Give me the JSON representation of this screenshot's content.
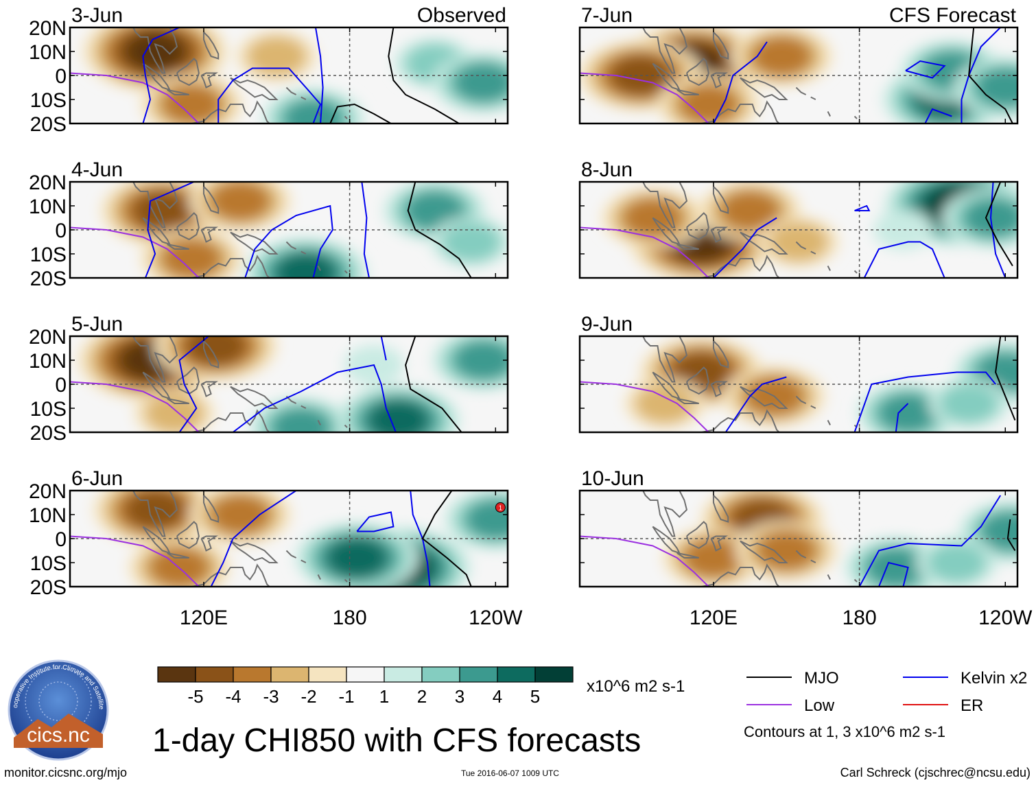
{
  "chart_data": {
    "type": "heatmap",
    "title": "1-day CHI850 with CFS forecasts",
    "units": "x10^6 m2 s-1",
    "y_axis": {
      "ticks": [
        "20N",
        "10N",
        "0",
        "10S",
        "20S"
      ],
      "range": [
        -20,
        20
      ]
    },
    "x_axis": {
      "ticks": [
        "120E",
        "180",
        "120W"
      ],
      "range": [
        65,
        245
      ]
    },
    "panels": [
      {
        "date": "3-Jun",
        "tag": "Observed",
        "kind": "obs",
        "centers": [
          {
            "lon": 100,
            "lat": 10,
            "v": -5
          },
          {
            "lon": 115,
            "lat": -12,
            "v": -3
          },
          {
            "lon": 150,
            "lat": 8,
            "v": -2
          },
          {
            "lon": 165,
            "lat": -18,
            "v": 3
          },
          {
            "lon": 215,
            "lat": 5,
            "v": 2
          },
          {
            "lon": 235,
            "lat": -3,
            "v": 3
          }
        ],
        "mjo": [
          [
            [
              198,
              20
            ],
            [
              196,
              8
            ],
            [
              198,
              -2
            ],
            [
              203,
              -8
            ],
            [
              215,
              -14
            ],
            [
              225,
              -20
            ]
          ],
          [
            [
              172,
              -20
            ],
            [
              175,
              -13
            ],
            [
              182,
              -12
            ],
            [
              190,
              -16
            ],
            [
              197,
              -20
            ]
          ]
        ],
        "kelvin": [
          [
            [
              95,
              -20
            ],
            [
              98,
              -10
            ],
            [
              96,
              0
            ],
            [
              95,
              8
            ],
            [
              99,
              15
            ],
            [
              110,
              20
            ]
          ],
          [
            [
              126,
              -20
            ],
            [
              126,
              -10
            ],
            [
              132,
              -2
            ],
            [
              140,
              3
            ],
            [
              155,
              3
            ],
            [
              162,
              -5
            ],
            [
              168,
              -12
            ],
            [
              165,
              -20
            ]
          ],
          [
            [
              166,
              20
            ],
            [
              168,
              8
            ],
            [
              169,
              -5
            ],
            [
              168,
              -20
            ]
          ]
        ]
      },
      {
        "date": "4-Jun",
        "kind": "obs",
        "centers": [
          {
            "lon": 103,
            "lat": 8,
            "v": -4
          },
          {
            "lon": 115,
            "lat": -12,
            "v": -3
          },
          {
            "lon": 135,
            "lat": 12,
            "v": -3
          },
          {
            "lon": 162,
            "lat": -18,
            "v": 4
          },
          {
            "lon": 215,
            "lat": 8,
            "v": 3
          },
          {
            "lon": 230,
            "lat": -5,
            "v": 2
          }
        ],
        "mjo": [
          [
            [
              207,
              20
            ],
            [
              204,
              8
            ],
            [
              207,
              0
            ],
            [
              217,
              -6
            ],
            [
              225,
              -12
            ],
            [
              230,
              -20
            ]
          ]
        ],
        "kelvin": [
          [
            [
              96,
              -20
            ],
            [
              100,
              -10
            ],
            [
              97,
              0
            ],
            [
              98,
              12
            ],
            [
              116,
              20
            ]
          ],
          [
            [
              137,
              -20
            ],
            [
              141,
              -8
            ],
            [
              148,
              0
            ],
            [
              158,
              6
            ],
            [
              172,
              10
            ],
            [
              173,
              0
            ],
            [
              168,
              -8
            ],
            [
              165,
              -20
            ]
          ],
          [
            [
              185,
              20
            ],
            [
              187,
              5
            ],
            [
              186,
              -10
            ],
            [
              188,
              -20
            ]
          ]
        ]
      },
      {
        "date": "5-Jun",
        "kind": "obs",
        "centers": [
          {
            "lon": 98,
            "lat": 10,
            "v": -5
          },
          {
            "lon": 125,
            "lat": 16,
            "v": -4
          },
          {
            "lon": 108,
            "lat": -12,
            "v": -2
          },
          {
            "lon": 160,
            "lat": -18,
            "v": 3
          },
          {
            "lon": 200,
            "lat": -15,
            "v": 4
          },
          {
            "lon": 235,
            "lat": 10,
            "v": 3
          },
          {
            "lon": 190,
            "lat": 8,
            "v": 1
          }
        ],
        "mjo": [
          [
            [
              207,
              20
            ],
            [
              203,
              8
            ],
            [
              205,
              -2
            ],
            [
              218,
              -10
            ],
            [
              226,
              -20
            ]
          ]
        ],
        "kelvin": [
          [
            [
              110,
              -20
            ],
            [
              117,
              -10
            ],
            [
              112,
              0
            ],
            [
              110,
              10
            ],
            [
              122,
              20
            ]
          ],
          [
            [
              132,
              -20
            ],
            [
              145,
              -10
            ],
            [
              160,
              -3
            ],
            [
              175,
              5
            ],
            [
              190,
              8
            ],
            [
              193,
              0
            ],
            [
              195,
              -10
            ],
            [
              199,
              -20
            ]
          ],
          [
            [
              193,
              20
            ],
            [
              195,
              10
            ]
          ]
        ]
      },
      {
        "date": "6-Jun",
        "kind": "obs",
        "centers": [
          {
            "lon": 100,
            "lat": 12,
            "v": -4
          },
          {
            "lon": 110,
            "lat": -12,
            "v": -3
          },
          {
            "lon": 135,
            "lat": 10,
            "v": -3
          },
          {
            "lon": 200,
            "lat": -12,
            "v": 5
          },
          {
            "lon": 183,
            "lat": -8,
            "v": 4
          },
          {
            "lon": 240,
            "lat": 8,
            "v": 3
          }
        ],
        "mjo": [
          [
            [
              222,
              20
            ],
            [
              215,
              10
            ],
            [
              210,
              0
            ],
            [
              220,
              -8
            ],
            [
              228,
              -15
            ],
            [
              230,
              -20
            ]
          ]
        ],
        "kelvin": [
          [
            [
              123,
              -20
            ],
            [
              128,
              -10
            ],
            [
              132,
              0
            ],
            [
              143,
              10
            ],
            [
              158,
              20
            ]
          ],
          [
            [
              183,
              3
            ],
            [
              188,
              9
            ],
            [
              197,
              11
            ],
            [
              198,
              5
            ],
            [
              190,
              3
            ],
            [
              183,
              3
            ]
          ],
          [
            [
              205,
              20
            ],
            [
              206,
              10
            ],
            [
              210,
              0
            ],
            [
              212,
              -10
            ],
            [
              213,
              -20
            ]
          ]
        ],
        "storm": {
          "lon": 242,
          "lat": 13,
          "label": "1"
        }
      },
      {
        "date": "7-Jun",
        "tag": "CFS Forecast",
        "kind": "fcst",
        "centers": [
          {
            "lon": 112,
            "lat": 5,
            "v": -5
          },
          {
            "lon": 90,
            "lat": 0,
            "v": -4
          },
          {
            "lon": 148,
            "lat": 8,
            "v": -3
          },
          {
            "lon": 118,
            "lat": -12,
            "v": -3
          },
          {
            "lon": 215,
            "lat": -10,
            "v": 4
          },
          {
            "lon": 218,
            "lat": 2,
            "v": 3
          },
          {
            "lon": 240,
            "lat": -5,
            "v": 3
          }
        ],
        "mjo": [
          [
            [
              227,
              20
            ],
            [
              225,
              0
            ],
            [
              232,
              -8
            ],
            [
              240,
              -14
            ],
            [
              243,
              -20
            ]
          ]
        ],
        "kelvin": [
          [
            [
              120,
              -20
            ],
            [
              125,
              -10
            ],
            [
              128,
              0
            ],
            [
              138,
              8
            ],
            [
              142,
              14
            ]
          ],
          [
            [
              199,
              2
            ],
            [
              205,
              6
            ],
            [
              215,
              4
            ],
            [
              210,
              -1
            ],
            [
              199,
              2
            ]
          ],
          [
            [
              222,
              -20
            ],
            [
              222,
              -10
            ],
            [
              225,
              0
            ],
            [
              230,
              12
            ],
            [
              238,
              20
            ]
          ],
          [
            [
              207,
              -20
            ],
            [
              210,
              -14
            ],
            [
              218,
              -17
            ]
          ]
        ]
      },
      {
        "date": "8-Jun",
        "kind": "fcst",
        "centers": [
          {
            "lon": 115,
            "lat": -5,
            "v": -5
          },
          {
            "lon": 95,
            "lat": 5,
            "v": -3
          },
          {
            "lon": 135,
            "lat": 8,
            "v": -3
          },
          {
            "lon": 155,
            "lat": -5,
            "v": -2
          },
          {
            "lon": 220,
            "lat": 10,
            "v": 5
          },
          {
            "lon": 235,
            "lat": 5,
            "v": 3
          },
          {
            "lon": 198,
            "lat": 0,
            "v": 1
          }
        ],
        "mjo": [
          [
            [
              238,
              20
            ],
            [
              232,
              5
            ],
            [
              237,
              -5
            ],
            [
              243,
              -15
            ]
          ]
        ],
        "kelvin": [
          [
            [
              120,
              -20
            ],
            [
              132,
              -8
            ],
            [
              138,
              0
            ],
            [
              146,
              5
            ]
          ],
          [
            [
              182,
              -20
            ],
            [
              188,
              -8
            ],
            [
              200,
              -5
            ],
            [
              205,
              -5
            ],
            [
              210,
              -8
            ],
            [
              215,
              -20
            ]
          ],
          [
            [
              235,
              20
            ],
            [
              234,
              5
            ],
            [
              236,
              -10
            ],
            [
              240,
              -20
            ]
          ],
          [
            [
              178,
              8
            ],
            [
              183,
              10
            ],
            [
              184,
              8
            ],
            [
              178,
              8
            ]
          ]
        ]
      },
      {
        "date": "9-Jun",
        "kind": "fcst",
        "centers": [
          {
            "lon": 115,
            "lat": 5,
            "v": -4
          },
          {
            "lon": 100,
            "lat": -8,
            "v": -2
          },
          {
            "lon": 145,
            "lat": -5,
            "v": -3
          },
          {
            "lon": 200,
            "lat": -12,
            "v": 3
          },
          {
            "lon": 240,
            "lat": 5,
            "v": 3
          },
          {
            "lon": 225,
            "lat": -8,
            "v": 2
          }
        ],
        "mjo": [
          [
            [
              238,
              20
            ],
            [
              236,
              5
            ],
            [
              240,
              -5
            ],
            [
              244,
              -15
            ]
          ]
        ],
        "kelvin": [
          [
            [
              125,
              -20
            ],
            [
              135,
              -5
            ],
            [
              140,
              0
            ],
            [
              150,
              3
            ]
          ],
          [
            [
              178,
              -20
            ],
            [
              185,
              0
            ],
            [
              200,
              3
            ],
            [
              220,
              5
            ],
            [
              232,
              5
            ],
            [
              236,
              0
            ]
          ],
          [
            [
              195,
              -20
            ],
            [
              196,
              -12
            ],
            [
              200,
              -8
            ]
          ]
        ]
      },
      {
        "date": "10-Jun",
        "kind": "fcst",
        "centers": [
          {
            "lon": 140,
            "lat": 8,
            "v": -4
          },
          {
            "lon": 120,
            "lat": -8,
            "v": -3
          },
          {
            "lon": 150,
            "lat": -5,
            "v": -3
          },
          {
            "lon": 195,
            "lat": -12,
            "v": 3
          },
          {
            "lon": 242,
            "lat": 3,
            "v": 3
          },
          {
            "lon": 220,
            "lat": -10,
            "v": 2
          }
        ],
        "mjo": [
          [
            [
              242,
              8
            ],
            [
              241,
              0
            ],
            [
              244,
              -5
            ]
          ]
        ],
        "kelvin": [
          [
            [
              180,
              -20
            ],
            [
              188,
              -5
            ],
            [
              200,
              -2
            ],
            [
              222,
              -3
            ],
            [
              230,
              5
            ],
            [
              238,
              18
            ]
          ],
          [
            [
              188,
              -20
            ],
            [
              192,
              -10
            ],
            [
              200,
              -12
            ],
            [
              198,
              -20
            ]
          ]
        ]
      }
    ],
    "colorbar": {
      "colors": [
        "#5a3510",
        "#8a5218",
        "#b9782e",
        "#dcb570",
        "#f5e4c0",
        "#f6f6f6",
        "#c9ebe3",
        "#84cdc0",
        "#3c9a8f",
        "#0d6b5f",
        "#023f36"
      ],
      "labels": [
        "-5",
        "-4",
        "-3",
        "-2",
        "-1",
        "1",
        "2",
        "3",
        "4",
        "5"
      ]
    },
    "legend": [
      {
        "label": "MJO",
        "color": "#000000"
      },
      {
        "label": "Kelvin x2",
        "color": "#0000ee"
      },
      {
        "label": "Low",
        "color": "#9b30e0"
      },
      {
        "label": "ER",
        "color": "#e01010"
      }
    ],
    "contour_note": "Contours at 1, 3 x10^6 m2 s-1"
  },
  "footer": {
    "left": "monitor.cicsnc.org/mjo",
    "center": "Tue 2016-06-07 1009 UTC",
    "right": "Carl Schreck (cjschrec@ncsu.edu)"
  },
  "logo": {
    "text": "cics.nc",
    "arc_text": "Cooperative Institute for Climate and Satellites"
  }
}
